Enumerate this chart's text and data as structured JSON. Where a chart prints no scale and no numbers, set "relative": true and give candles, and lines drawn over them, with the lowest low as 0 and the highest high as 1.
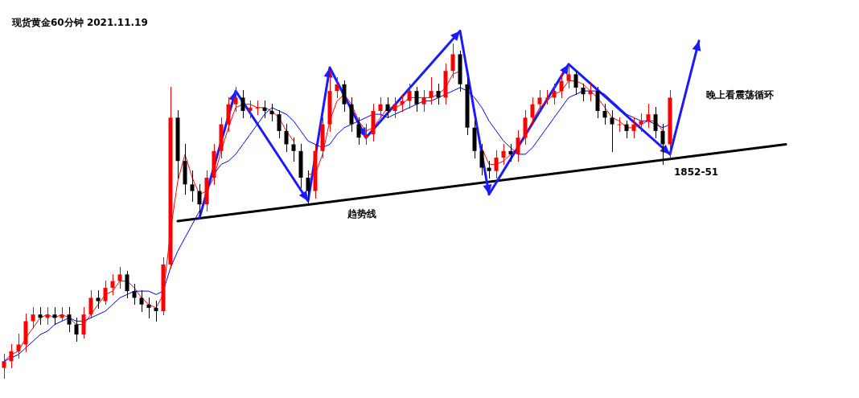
{
  "chart_data": {
    "type": "candlestick",
    "title": "现货黄金60分钟 2021.11.19",
    "relative": true,
    "categories": [
      null,
      null,
      null,
      null,
      null,
      null,
      null,
      null,
      null,
      null,
      null,
      null,
      null,
      null,
      null,
      null,
      null,
      null,
      null,
      null,
      null,
      null,
      null,
      null,
      null,
      null,
      null,
      null,
      null,
      null,
      null,
      null,
      null,
      null,
      null,
      null,
      null,
      null,
      null,
      null,
      null,
      null,
      null,
      null,
      null,
      null,
      null,
      null,
      null,
      null,
      null,
      null,
      null,
      null,
      null,
      null,
      null,
      null,
      null,
      null,
      null,
      null,
      null,
      null,
      null,
      null,
      null,
      null,
      null,
      null,
      null,
      null,
      null,
      null,
      null,
      null,
      null,
      null,
      null,
      null,
      null,
      null,
      null,
      null,
      null,
      null,
      null,
      null,
      null,
      null,
      null,
      null,
      null,
      null,
      null,
      null,
      null,
      null,
      null,
      null,
      null,
      null,
      null,
      null,
      null,
      null,
      null,
      null,
      null
    ],
    "ohlc": [
      [
        0.03,
        0.07,
        0,
        0.05
      ],
      [
        0.05,
        0.1,
        0.03,
        0.08
      ],
      [
        0.08,
        0.13,
        0.06,
        0.1
      ],
      [
        0.1,
        0.19,
        0.08,
        0.17
      ],
      [
        0.17,
        0.21,
        0.15,
        0.19
      ],
      [
        0.19,
        0.21,
        0.16,
        0.18
      ],
      [
        0.18,
        0.21,
        0.16,
        0.19
      ],
      [
        0.19,
        0.21,
        0.16,
        0.18
      ],
      [
        0.18,
        0.21,
        0.17,
        0.19
      ],
      [
        0.19,
        0.21,
        0.14,
        0.16
      ],
      [
        0.16,
        0.18,
        0.11,
        0.13
      ],
      [
        0.13,
        0.21,
        0.12,
        0.19
      ],
      [
        0.19,
        0.26,
        0.18,
        0.24
      ],
      [
        0.24,
        0.26,
        0.21,
        0.23
      ],
      [
        0.23,
        0.29,
        0.22,
        0.27
      ],
      [
        0.27,
        0.31,
        0.25,
        0.29
      ],
      [
        0.29,
        0.33,
        0.27,
        0.31
      ],
      [
        0.31,
        0.32,
        0.24,
        0.26
      ],
      [
        0.26,
        0.28,
        0.22,
        0.24
      ],
      [
        0.24,
        0.26,
        0.2,
        0.22
      ],
      [
        0.22,
        0.24,
        0.18,
        0.21
      ],
      [
        0.21,
        0.23,
        0.17,
        0.2
      ],
      [
        0.2,
        0.36,
        0.19,
        0.34
      ],
      [
        0.34,
        0.87,
        0.33,
        0.78
      ],
      [
        0.78,
        0.8,
        0.6,
        0.65
      ],
      [
        0.65,
        0.7,
        0.55,
        0.58
      ],
      [
        0.58,
        0.62,
        0.53,
        0.56
      ],
      [
        0.56,
        0.58,
        0.49,
        0.52
      ],
      [
        0.52,
        0.62,
        0.5,
        0.6
      ],
      [
        0.6,
        0.7,
        0.58,
        0.68
      ],
      [
        0.68,
        0.78,
        0.66,
        0.76
      ],
      [
        0.76,
        0.84,
        0.74,
        0.82
      ],
      [
        0.82,
        0.87,
        0.8,
        0.84
      ],
      [
        0.84,
        0.86,
        0.78,
        0.8
      ],
      [
        0.8,
        0.83,
        0.78,
        0.81
      ],
      [
        0.81,
        0.83,
        0.79,
        0.81
      ],
      [
        0.81,
        0.83,
        0.78,
        0.8
      ],
      [
        0.8,
        0.82,
        0.77,
        0.79
      ],
      [
        0.79,
        0.8,
        0.72,
        0.74
      ],
      [
        0.74,
        0.76,
        0.68,
        0.7
      ],
      [
        0.7,
        0.72,
        0.65,
        0.68
      ],
      [
        0.68,
        0.7,
        0.57,
        0.6
      ],
      [
        0.6,
        0.62,
        0.52,
        0.56
      ],
      [
        0.56,
        0.7,
        0.54,
        0.68
      ],
      [
        0.68,
        0.78,
        0.66,
        0.76
      ],
      [
        0.76,
        0.92,
        0.74,
        0.86
      ],
      [
        0.86,
        0.9,
        0.84,
        0.88
      ],
      [
        0.88,
        0.89,
        0.8,
        0.82
      ],
      [
        0.82,
        0.84,
        0.74,
        0.76
      ],
      [
        0.76,
        0.78,
        0.7,
        0.72
      ],
      [
        0.72,
        0.76,
        0.7,
        0.73
      ],
      [
        0.73,
        0.82,
        0.71,
        0.8
      ],
      [
        0.8,
        0.84,
        0.78,
        0.82
      ],
      [
        0.82,
        0.84,
        0.78,
        0.8
      ],
      [
        0.8,
        0.84,
        0.78,
        0.82
      ],
      [
        0.82,
        0.85,
        0.8,
        0.83
      ],
      [
        0.83,
        0.88,
        0.81,
        0.86
      ],
      [
        0.86,
        0.87,
        0.8,
        0.82
      ],
      [
        0.82,
        0.86,
        0.8,
        0.84
      ],
      [
        0.84,
        0.9,
        0.82,
        0.86
      ],
      [
        0.86,
        0.88,
        0.82,
        0.84
      ],
      [
        0.84,
        0.94,
        0.82,
        0.92
      ],
      [
        0.92,
        1,
        0.9,
        0.97
      ],
      [
        0.97,
        0.98,
        0.86,
        0.88
      ],
      [
        0.88,
        0.9,
        0.73,
        0.75
      ],
      [
        0.75,
        0.77,
        0.66,
        0.68
      ],
      [
        0.68,
        0.7,
        0.61,
        0.63
      ],
      [
        0.63,
        0.65,
        0.6,
        0.62
      ],
      [
        0.62,
        0.68,
        0.6,
        0.66
      ],
      [
        0.66,
        0.7,
        0.64,
        0.68
      ],
      [
        0.68,
        0.7,
        0.65,
        0.67
      ],
      [
        0.67,
        0.74,
        0.65,
        0.72
      ],
      [
        0.72,
        0.8,
        0.7,
        0.78
      ],
      [
        0.78,
        0.84,
        0.76,
        0.82
      ],
      [
        0.82,
        0.86,
        0.8,
        0.84
      ],
      [
        0.84,
        0.86,
        0.82,
        0.84
      ],
      [
        0.84,
        0.88,
        0.82,
        0.86
      ],
      [
        0.86,
        0.91,
        0.84,
        0.89
      ],
      [
        0.89,
        0.93,
        0.87,
        0.91
      ],
      [
        0.91,
        0.92,
        0.85,
        0.87
      ],
      [
        0.87,
        0.88,
        0.83,
        0.85
      ],
      [
        0.85,
        0.88,
        0.83,
        0.86
      ],
      [
        0.86,
        0.87,
        0.78,
        0.8
      ],
      [
        0.8,
        0.82,
        0.76,
        0.78
      ],
      [
        0.78,
        0.8,
        0.68,
        0.76
      ],
      [
        0.76,
        0.78,
        0.74,
        0.76
      ],
      [
        0.76,
        0.77,
        0.72,
        0.74
      ],
      [
        0.74,
        0.78,
        0.72,
        0.76
      ],
      [
        0.76,
        0.79,
        0.74,
        0.77
      ],
      [
        0.77,
        0.82,
        0.75,
        0.79
      ],
      [
        0.79,
        0.81,
        0.72,
        0.74
      ],
      [
        0.74,
        0.76,
        0.64,
        0.7
      ],
      [
        0.7,
        0.86,
        0.66,
        0.84
      ],
      null,
      null,
      null,
      null,
      null,
      null,
      null,
      null,
      null,
      null,
      null,
      null,
      null,
      null,
      null,
      null
    ],
    "colors": [
      "#ff0000",
      "#ff0000",
      "#ff0000",
      "#ff0000",
      "#ff0000",
      "#000000",
      "#ff0000",
      "#000000",
      "#ff0000",
      "#000000",
      "#000000",
      "#ff0000",
      "#ff0000",
      "#000000",
      "#ff0000",
      "#ff0000",
      "#ff0000",
      "#000000",
      "#000000",
      "#000000",
      "#000000",
      "#000000",
      "#ff0000",
      "#ff0000",
      "#000000",
      "#000000",
      "#000000",
      "#000000",
      "#ff0000",
      "#ff0000",
      "#ff0000",
      "#ff0000",
      "#ff0000",
      "#000000",
      "#ff0000",
      "#ff0000",
      "#000000",
      "#000000",
      "#000000",
      "#000000",
      "#000000",
      "#000000",
      "#000000",
      "#ff0000",
      "#ff0000",
      "#ff0000",
      "#ff0000",
      "#000000",
      "#000000",
      "#000000",
      "#ff0000",
      "#ff0000",
      "#ff0000",
      "#000000",
      "#ff0000",
      "#ff0000",
      "#ff0000",
      "#000000",
      "#ff0000",
      "#ff0000",
      "#000000",
      "#ff0000",
      "#ff0000",
      "#000000",
      "#000000",
      "#000000",
      "#000000",
      "#000000",
      "#ff0000",
      "#ff0000",
      "#000000",
      "#ff0000",
      "#ff0000",
      "#ff0000",
      "#ff0000",
      "#ff0000",
      "#ff0000",
      "#ff0000",
      "#ff0000",
      "#000000",
      "#000000",
      "#ff0000",
      "#000000",
      "#000000",
      "#000000",
      "#ff0000",
      "#000000",
      "#ff0000",
      "#ff0000",
      "#ff0000",
      "#000000",
      "#000000",
      "#ff0000",
      null,
      null,
      null,
      null,
      null,
      null,
      null,
      null,
      null,
      null,
      null,
      null,
      null,
      null,
      null,
      null
    ],
    "series": [
      {
        "type": "line",
        "color": "#ff0000",
        "values": [
          0.05,
          0.07,
          0.08,
          0.12,
          0.15,
          0.18,
          0.19,
          0.18,
          0.19,
          0.18,
          0.16,
          0.16,
          0.19,
          0.22,
          0.25,
          0.26,
          0.29,
          0.29,
          0.27,
          0.24,
          0.22,
          0.21,
          0.25,
          0.44,
          0.59,
          0.67,
          0.6,
          0.55,
          0.56,
          0.6,
          0.68,
          0.75,
          0.81,
          0.82,
          0.82,
          0.81,
          0.81,
          0.8,
          0.78,
          0.74,
          0.71,
          null,
          0.61,
          0.61,
          0.67,
          0.77,
          0.83,
          0.85,
          0.82,
          0.77,
          0.74,
          0.75,
          0.78,
          0.81,
          0.81,
          0.82,
          0.84,
          0.84,
          0.84,
          0.84,
          0.85,
          0.87,
          0.91,
          0.92,
          null,
          null,
          0.69,
          0.64,
          0.64,
          0.65,
          0.67,
          0.69,
          0.72,
          0.77,
          0.81,
          0.83,
          0.85,
          0.86,
          0.89,
          0.89,
          0.88,
          0.86,
          0.84,
          0.81,
          0.78,
          0.77,
          0.75,
          0.75,
          0.76,
          0.77,
          0.77,
          0.74,
          null,
          null,
          null,
          null,
          null,
          null,
          null,
          null,
          null,
          null,
          null,
          null,
          null,
          null,
          null,
          null,
          null
        ]
      },
      {
        "type": "line",
        "color": "#0000ff",
        "values": [
          0.05,
          0.06,
          0.07,
          0.09,
          0.11,
          0.13,
          0.14,
          0.16,
          0.17,
          0.18,
          0.17,
          0.17,
          0.18,
          0.19,
          0.2,
          0.22,
          0.24,
          0.25,
          0.26,
          0.26,
          0.26,
          0.25,
          0.26,
          0.33,
          0.38,
          0.42,
          0.46,
          0.5,
          null,
          0.61,
          0.64,
          0.65,
          0.67,
          0.7,
          0.73,
          0.76,
          0.79,
          0.81,
          0.8,
          0.79,
          0.77,
          0.74,
          0.71,
          0.7,
          0.69,
          0.7,
          0.73,
          0.75,
          0.76,
          0.77,
          0.78,
          0.79,
          0.79,
          0.78,
          0.79,
          0.8,
          0.81,
          0.82,
          0.83,
          0.83,
          0.84,
          0.85,
          0.86,
          0.87,
          0.86,
          0.84,
          0.81,
          0.77,
          0.74,
          0.71,
          0.69,
          0.67,
          0.67,
          0.69,
          0.72,
          0.75,
          0.78,
          0.81,
          0.84,
          0.85,
          0.86,
          0.86,
          0.86,
          0.85,
          0.83,
          0.81,
          0.79,
          0.78,
          0.77,
          0.77,
          0.76,
          0.75,
          0.76,
          null,
          null,
          null,
          null,
          null,
          null,
          null,
          null,
          null,
          null,
          null,
          null,
          null,
          null,
          null,
          null
        ]
      },
      {
        "type": "line",
        "color": "#000000",
        "values": [
          null,
          null,
          null,
          null,
          null,
          null,
          null,
          null,
          null,
          null,
          null,
          null,
          null,
          null,
          null,
          null,
          null,
          null,
          null,
          null,
          null,
          null,
          null,
          null,
          0.47,
          null,
          null,
          null,
          null,
          null,
          null,
          null,
          null,
          null,
          null,
          null,
          null,
          null,
          null,
          null,
          null,
          null,
          null,
          null,
          null,
          null,
          null,
          null,
          null,
          null,
          null,
          null,
          null,
          null,
          null,
          null,
          null,
          null,
          null,
          null,
          null,
          null,
          null,
          null,
          null,
          null,
          null,
          null,
          null,
          null,
          null,
          null,
          null,
          null,
          null,
          null,
          null,
          null,
          null,
          null,
          null,
          null,
          null,
          null,
          null,
          null,
          null,
          null,
          null,
          null,
          null,
          null,
          null,
          null,
          null,
          null,
          null,
          null,
          null,
          null,
          null,
          null,
          null,
          null,
          null,
          null,
          null,
          null,
          0.7
        ]
      },
      {
        "type": "line",
        "color": "#1a1aff",
        "values": [
          null,
          null,
          null,
          null,
          null,
          null,
          null,
          null,
          null,
          null,
          null,
          null,
          null,
          null,
          null,
          null,
          null,
          null,
          null,
          null,
          null,
          null,
          null,
          null,
          null,
          null,
          null,
          0.48,
          null,
          null,
          null,
          null,
          0.86,
          null,
          null,
          null,
          null,
          null,
          null,
          null,
          null,
          null,
          0.53,
          null,
          null,
          0.93,
          null,
          null,
          null,
          null,
          0.72,
          null,
          null,
          null,
          null,
          null,
          null,
          null,
          null,
          null,
          null,
          null,
          null,
          1.04,
          null,
          null,
          null,
          0.55,
          null,
          null,
          null,
          null,
          null,
          null,
          null,
          null,
          null,
          null,
          0.94,
          null,
          null,
          null,
          null,
          null,
          null,
          null,
          null,
          null,
          null,
          null,
          null,
          null,
          0.67,
          null,
          null,
          null,
          1.01,
          null,
          null,
          null,
          null,
          null,
          null,
          null,
          null,
          null,
          null,
          null,
          null
        ]
      }
    ],
    "annotations": [
      "1852-51",
      "趋势线",
      "晚上看震荡循环"
    ]
  }
}
